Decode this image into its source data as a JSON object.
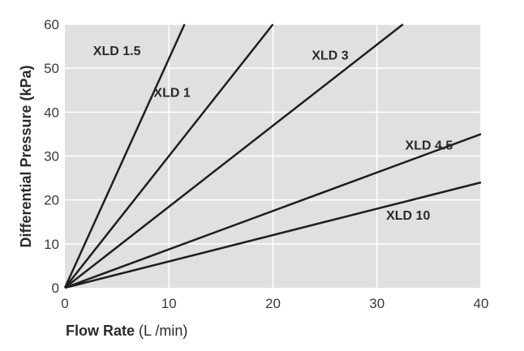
{
  "chart_data": {
    "type": "line",
    "title": "",
    "xlabel_bold": "Flow Rate",
    "xlabel_rest": " (L /min)",
    "ylabel": "Differential Pressure (kPa)",
    "xlim": [
      0,
      40
    ],
    "ylim": [
      0,
      60
    ],
    "x_ticks": [
      0,
      10,
      20,
      30,
      40
    ],
    "y_ticks": [
      0,
      10,
      20,
      30,
      40,
      50,
      60
    ],
    "grid": true,
    "background": "#e0e0e0",
    "line_color": "#1f1f1f",
    "series": [
      {
        "name": "XLD 1.5",
        "x": [
          0,
          11.5
        ],
        "y": [
          0,
          60
        ]
      },
      {
        "name": "XLD 1",
        "x": [
          0,
          20
        ],
        "y": [
          0,
          60
        ]
      },
      {
        "name": "XLD 3",
        "x": [
          0,
          32.5
        ],
        "y": [
          0,
          60
        ]
      },
      {
        "name": "XLD 4.5",
        "x": [
          0,
          40
        ],
        "y": [
          0,
          35
        ]
      },
      {
        "name": "XLD 10",
        "x": [
          0,
          40
        ],
        "y": [
          0,
          24
        ]
      }
    ]
  }
}
